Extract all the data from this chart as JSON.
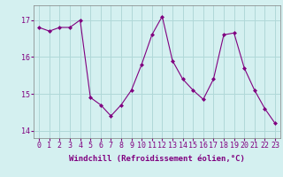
{
  "x": [
    0,
    1,
    2,
    3,
    4,
    5,
    6,
    7,
    8,
    9,
    10,
    11,
    12,
    13,
    14,
    15,
    16,
    17,
    18,
    19,
    20,
    21,
    22,
    23
  ],
  "y": [
    16.8,
    16.7,
    16.8,
    16.8,
    17.0,
    14.9,
    14.7,
    14.4,
    14.7,
    15.1,
    15.8,
    16.6,
    17.1,
    15.9,
    15.4,
    15.1,
    14.85,
    15.4,
    16.6,
    16.65,
    15.7,
    15.1,
    14.6,
    14.2
  ],
  "line_color": "#800080",
  "marker": "D",
  "marker_size": 2.0,
  "bg_color": "#d4f0f0",
  "grid_color": "#b0d8d8",
  "xlabel": "Windchill (Refroidissement éolien,°C)",
  "xlabel_fontsize": 6.5,
  "tick_fontsize": 6.0,
  "ylim": [
    13.8,
    17.4
  ],
  "yticks": [
    14,
    15,
    16,
    17
  ],
  "xlim": [
    -0.5,
    23.5
  ],
  "xticks": [
    0,
    1,
    2,
    3,
    4,
    5,
    6,
    7,
    8,
    9,
    10,
    11,
    12,
    13,
    14,
    15,
    16,
    17,
    18,
    19,
    20,
    21,
    22,
    23
  ]
}
